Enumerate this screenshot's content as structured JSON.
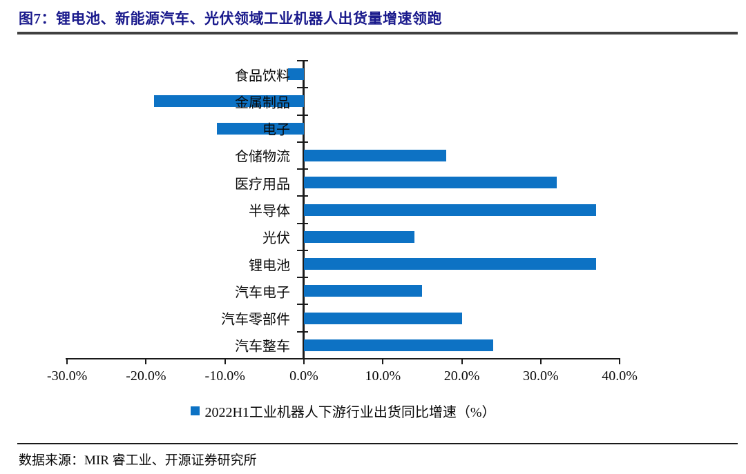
{
  "header": {
    "title": "图7：锂电池、新能源汽车、光伏领域工业机器人出货量增速领跑"
  },
  "colors": {
    "bar": "#0d72c4",
    "title": "#1a1a8c",
    "axis": "#1a1a1a"
  },
  "chart_data": {
    "type": "bar",
    "orientation": "horizontal",
    "title": "",
    "categories": [
      "食品饮料",
      "金属制品",
      "电子",
      "仓储物流",
      "医疗用品",
      "半导体",
      "光伏",
      "锂电池",
      "汽车电子",
      "汽车零部件",
      "汽车整车"
    ],
    "values": [
      -2,
      -19,
      -11,
      18,
      32,
      37,
      14,
      37,
      15,
      20,
      24
    ],
    "unit": "%",
    "xlim": [
      -30,
      40
    ],
    "x_ticks": [
      -30,
      -20,
      -10,
      0,
      10,
      20,
      30,
      40
    ],
    "x_tick_labels": [
      "-30.0%",
      "-20.0%",
      "-10.0%",
      "0.0%",
      "10.0%",
      "20.0%",
      "30.0%",
      "40.0%"
    ],
    "grid": false,
    "legend_position": "bottom",
    "legend": [
      "2022H1工业机器人下游行业出货同比增速（%）"
    ]
  },
  "footer": {
    "source": "数据来源：MIR 睿工业、开源证券研究所"
  }
}
